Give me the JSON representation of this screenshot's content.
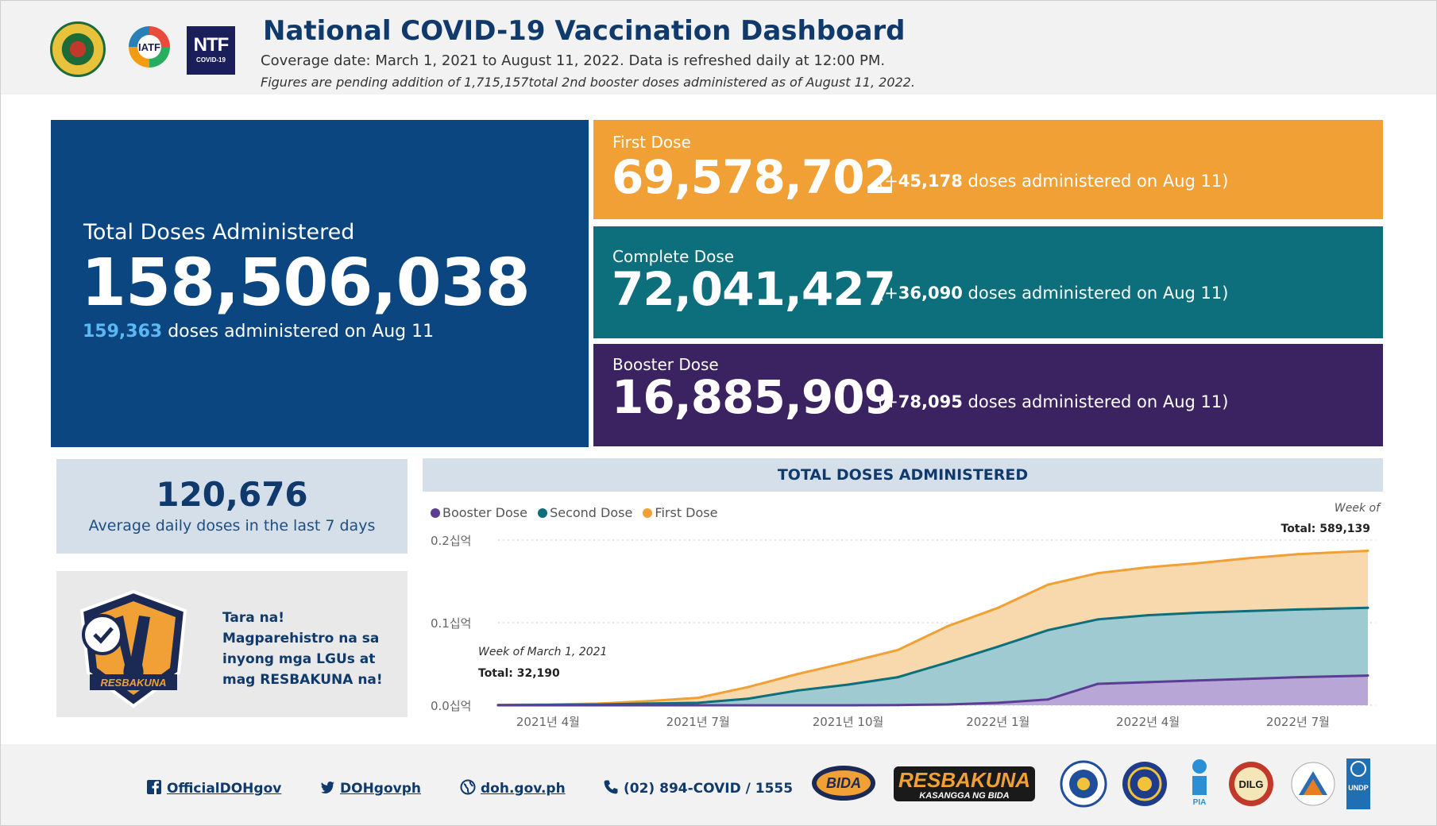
{
  "header": {
    "title": "National COVID-19 Vaccination Dashboard",
    "subtitle": "Coverage date: March 1, 2021 to August 11, 2022. Data is refreshed daily at 12:00 PM.",
    "note": "Figures are pending addition of 1,715,157total 2nd booster doses administered as of August 11, 2022.",
    "logo_ntf_big": "NTF",
    "logo_ntf_small": "COVID-19",
    "logo_iatf": "IATF"
  },
  "total": {
    "label": "Total Doses Administered",
    "value": "158,506,038",
    "daily_value": "159,363",
    "daily_text": " doses administered on Aug 11"
  },
  "first_dose": {
    "label": "First Dose",
    "value": "69,578,702",
    "sub_prefix": "(+",
    "sub_value": "45,178",
    "sub_suffix": " doses administered on Aug 11)"
  },
  "complete_dose": {
    "label": "Complete Dose",
    "value": "72,041,427",
    "sub_prefix": "(+",
    "sub_value": "36,090",
    "sub_suffix": " doses administered on Aug 11)"
  },
  "booster_dose": {
    "label": "Booster Dose",
    "value": "16,885,909",
    "sub_prefix": "(+",
    "sub_value": "78,095",
    "sub_suffix": " doses administered on Aug 11)"
  },
  "average": {
    "value": "120,676",
    "label": "Average daily doses in the last 7 days"
  },
  "promo": {
    "text": "Tara na! Magparehistro na sa inyong mga LGUs at mag RESBAKUNA na!",
    "badge_text": "RESBAKUNA"
  },
  "tooltip_end": {
    "week": "Week of",
    "total": "Total: 589,139"
  },
  "tooltip_start": {
    "week": "Week of March 1, 2021",
    "total": "Total: 32,190"
  },
  "colors": {
    "navy": "#0b4680",
    "orange": "#f0a034",
    "teal": "#0d6e7c",
    "purple": "#3b2361",
    "orange_fill": "#f8d9ae",
    "teal_fill": "#9fcad1",
    "purple_fill": "#b8a6d6"
  },
  "chart_data": {
    "type": "area",
    "title": "TOTAL DOSES ADMINISTERED",
    "legend": [
      "Booster Dose",
      "Second Dose",
      "First Dose"
    ],
    "y_ticks": [
      "0.0십억",
      "0.1십억",
      "0.2십억"
    ],
    "ylim": [
      0,
      0.2
    ],
    "x_tick_labels": [
      "2021년 4월",
      "2021년 7월",
      "2021년 10월",
      "2022년 1월",
      "2022년 4월",
      "2022년 7월"
    ],
    "x_tick_positions": [
      1,
      4,
      7,
      10,
      13,
      16
    ],
    "x": [
      0,
      1,
      2,
      3,
      4,
      5,
      6,
      7,
      8,
      9,
      10,
      11,
      12,
      13,
      14,
      15,
      16,
      17.4
    ],
    "series": [
      {
        "name": "First Dose",
        "values": [
          0.0005,
          0.001,
          0.002,
          0.005,
          0.009,
          0.022,
          0.038,
          0.052,
          0.067,
          0.096,
          0.118,
          0.146,
          0.16,
          0.167,
          0.172,
          0.178,
          0.183,
          0.187
        ]
      },
      {
        "name": "Second Dose",
        "values": [
          0.0002,
          0.0005,
          0.001,
          0.002,
          0.003,
          0.008,
          0.018,
          0.025,
          0.034,
          0.052,
          0.071,
          0.091,
          0.104,
          0.109,
          0.112,
          0.114,
          0.116,
          0.118
        ]
      },
      {
        "name": "Booster Dose",
        "values": [
          0,
          0,
          0,
          0,
          0,
          0,
          0,
          0,
          0.0003,
          0.001,
          0.003,
          0.007,
          0.026,
          0.028,
          0.03,
          0.032,
          0.034,
          0.036
        ]
      }
    ]
  },
  "footer": {
    "facebook": "OfficialDOHgov",
    "twitter": "DOHgovph",
    "website": "doh.gov.ph",
    "phone": "(02) 894-COVID / 1555",
    "logo_bida": "BIDA",
    "logo_resbakuna": "RESBAKUNA",
    "logo_resbakuna_sub": "KASANGGA NG BIDA",
    "logo_pia": "PIA",
    "logo_dilg": "DILG",
    "logo_undp": "UNDP"
  }
}
